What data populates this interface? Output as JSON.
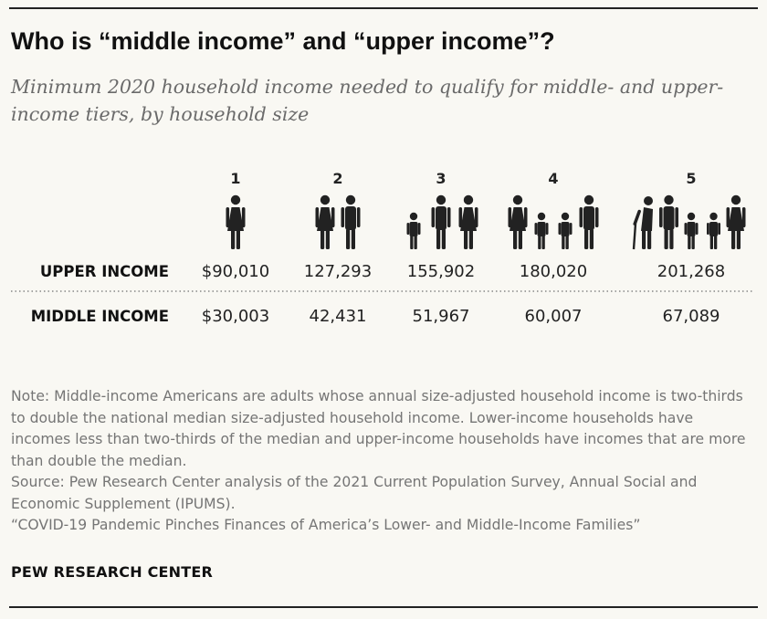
{
  "header": {
    "title": "Who is “middle income” and “upper income”?",
    "subtitle": "Minimum 2020 household income needed to qualify for middle- and upper-income tiers, by household size"
  },
  "chart_data": {
    "type": "table",
    "columns": [
      "1",
      "2",
      "3",
      "4",
      "5"
    ],
    "icon_figures": [
      [
        "adult"
      ],
      [
        "adult",
        "adult"
      ],
      [
        "child",
        "adult",
        "adult"
      ],
      [
        "adult",
        "child",
        "child",
        "adult"
      ],
      [
        "elder",
        "adult",
        "child",
        "child",
        "adult"
      ]
    ],
    "rows": [
      {
        "label": "UPPER INCOME",
        "values": [
          90010,
          127293,
          155902,
          180020,
          201268
        ],
        "display": [
          "$90,010",
          "127,293",
          "155,902",
          "180,020",
          "201,268"
        ]
      },
      {
        "label": "MIDDLE INCOME",
        "values": [
          30003,
          42431,
          51967,
          60007,
          67089
        ],
        "display": [
          "$30,003",
          "42,431",
          "51,967",
          "60,007",
          "67,089"
        ]
      }
    ],
    "colors": {
      "text": "#222222",
      "icon": "#222222",
      "label": "#111111",
      "divider": "#888888"
    }
  },
  "notes": {
    "note": "Note: Middle-income Americans are adults whose annual size-adjusted household income is two-thirds to double the national median size-adjusted household income. Lower-income households have incomes less than two-thirds of the median and upper-income households have incomes that are more than double the median.",
    "source": "Source: Pew Research Center analysis of the 2021 Current Population Survey, Annual Social and Economic Supplement (IPUMS).",
    "report": "“COVID-19 Pandemic Pinches Finances of America’s Lower- and Middle-Income Families”"
  },
  "branding": {
    "name": "PEW RESEARCH CENTER"
  }
}
